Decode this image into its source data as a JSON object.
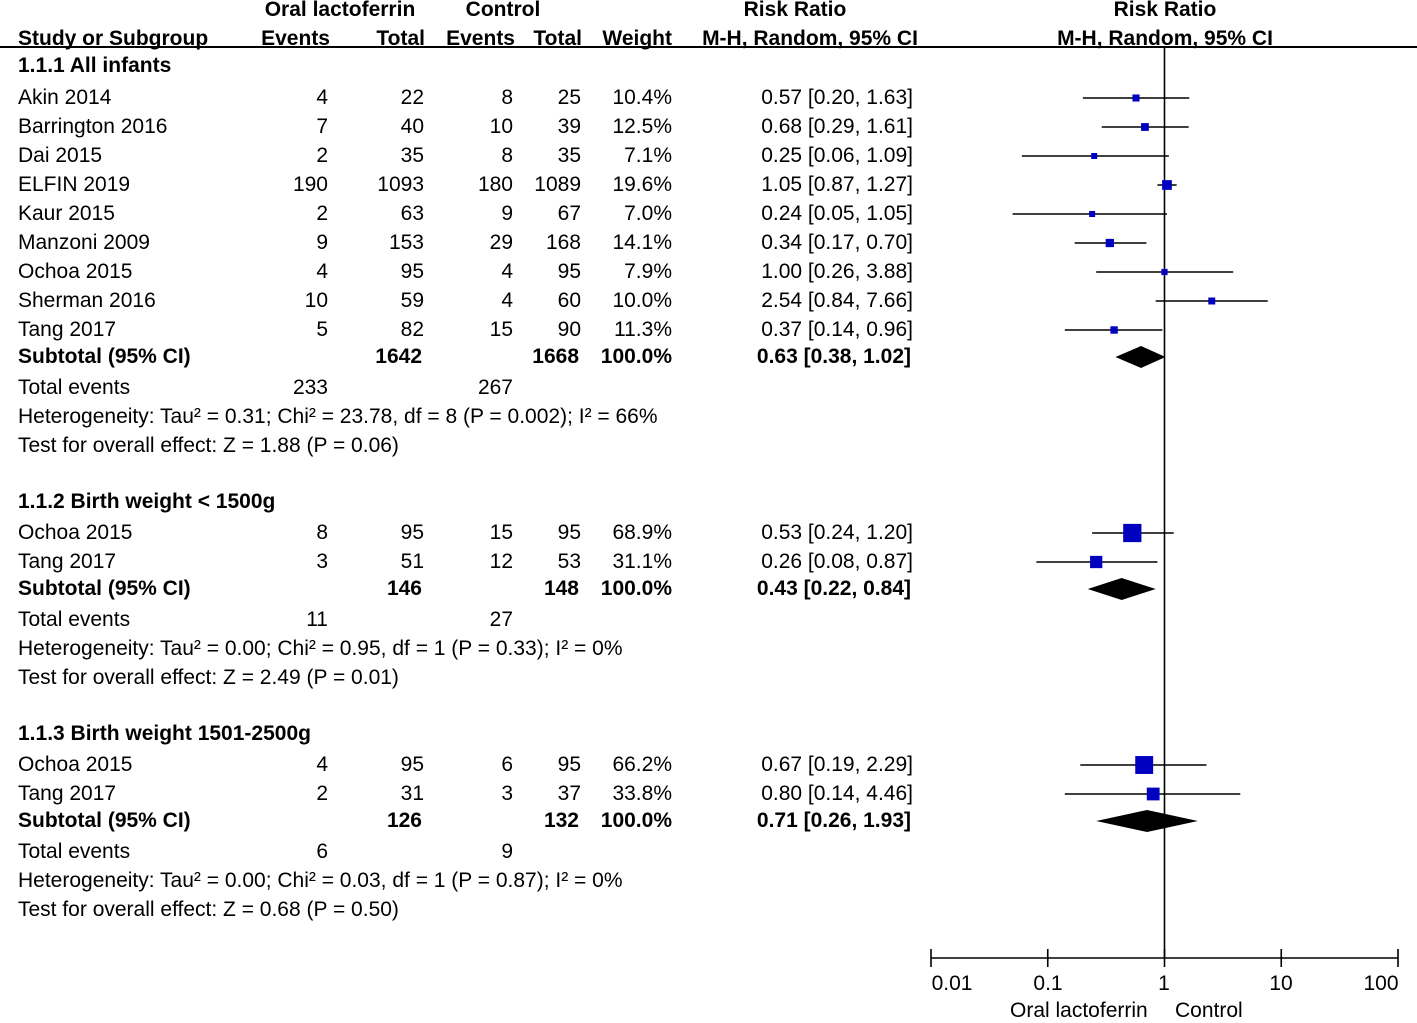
{
  "header": {
    "group1": "Oral lactoferrin",
    "group2": "Control",
    "rr_table": "Risk Ratio",
    "rr_plot": "Risk Ratio",
    "study_col": "Study or Subgroup",
    "events1": "Events",
    "total1": "Total",
    "events2": "Events",
    "total2": "Total",
    "weight": "Weight",
    "method_table": "M-H, Random, 95% CI",
    "method_plot": "M-H, Random, 95% CI"
  },
  "subgroups": [
    {
      "title": "1.1.1 All infants",
      "studies": [
        {
          "name": "Akin 2014",
          "e1": "4",
          "t1": "22",
          "e2": "8",
          "t2": "25",
          "weight": "10.4%",
          "ci": "0.57 [0.20, 1.63]"
        },
        {
          "name": "Barrington 2016",
          "e1": "7",
          "t1": "40",
          "e2": "10",
          "t2": "39",
          "weight": "12.5%",
          "ci": "0.68 [0.29, 1.61]"
        },
        {
          "name": "Dai 2015",
          "e1": "2",
          "t1": "35",
          "e2": "8",
          "t2": "35",
          "weight": "7.1%",
          "ci": "0.25 [0.06, 1.09]"
        },
        {
          "name": "ELFIN 2019",
          "e1": "190",
          "t1": "1093",
          "e2": "180",
          "t2": "1089",
          "weight": "19.6%",
          "ci": "1.05 [0.87, 1.27]"
        },
        {
          "name": "Kaur 2015",
          "e1": "2",
          "t1": "63",
          "e2": "9",
          "t2": "67",
          "weight": "7.0%",
          "ci": "0.24 [0.05, 1.05]"
        },
        {
          "name": "Manzoni 2009",
          "e1": "9",
          "t1": "153",
          "e2": "29",
          "t2": "168",
          "weight": "14.1%",
          "ci": "0.34 [0.17, 0.70]"
        },
        {
          "name": "Ochoa 2015",
          "e1": "4",
          "t1": "95",
          "e2": "4",
          "t2": "95",
          "weight": "7.9%",
          "ci": "1.00 [0.26, 3.88]"
        },
        {
          "name": "Sherman 2016",
          "e1": "10",
          "t1": "59",
          "e2": "4",
          "t2": "60",
          "weight": "10.0%",
          "ci": "2.54 [0.84, 7.66]"
        },
        {
          "name": "Tang 2017",
          "e1": "5",
          "t1": "82",
          "e2": "15",
          "t2": "90",
          "weight": "11.3%",
          "ci": "0.37 [0.14, 0.96]"
        }
      ],
      "subtotal": {
        "label": "Subtotal (95% CI)",
        "t1": "1642",
        "t2": "1668",
        "weight": "100.0%",
        "ci": "0.63 [0.38, 1.02]"
      },
      "events": {
        "label": "Total events",
        "e1": "233",
        "e2": "267"
      },
      "heterogeneity": "Heterogeneity: Tau² = 0.31; Chi² = 23.78, df = 8 (P = 0.002); I² = 66%",
      "overall": "Test for overall effect: Z = 1.88 (P = 0.06)"
    },
    {
      "title": "1.1.2 Birth weight < 1500g",
      "studies": [
        {
          "name": "Ochoa 2015",
          "e1": "8",
          "t1": "95",
          "e2": "15",
          "t2": "95",
          "weight": "68.9%",
          "ci": "0.53 [0.24, 1.20]"
        },
        {
          "name": "Tang 2017",
          "e1": "3",
          "t1": "51",
          "e2": "12",
          "t2": "53",
          "weight": "31.1%",
          "ci": "0.26 [0.08, 0.87]"
        }
      ],
      "subtotal": {
        "label": "Subtotal (95% CI)",
        "t1": "146",
        "t2": "148",
        "weight": "100.0%",
        "ci": "0.43 [0.22, 0.84]"
      },
      "events": {
        "label": "Total events",
        "e1": "11",
        "e2": "27"
      },
      "heterogeneity": "Heterogeneity: Tau² = 0.00; Chi² = 0.95, df = 1 (P = 0.33); I² = 0%",
      "overall": "Test for overall effect: Z = 2.49 (P = 0.01)"
    },
    {
      "title": "1.1.3 Birth weight 1501-2500g",
      "studies": [
        {
          "name": "Ochoa 2015",
          "e1": "4",
          "t1": "95",
          "e2": "6",
          "t2": "95",
          "weight": "66.2%",
          "ci": "0.67 [0.19, 2.29]"
        },
        {
          "name": "Tang 2017",
          "e1": "2",
          "t1": "31",
          "e2": "3",
          "t2": "37",
          "weight": "33.8%",
          "ci": "0.80 [0.14, 4.46]"
        }
      ],
      "subtotal": {
        "label": "Subtotal (95% CI)",
        "t1": "126",
        "t2": "132",
        "weight": "100.0%",
        "ci": "0.71 [0.26, 1.93]"
      },
      "events": {
        "label": "Total events",
        "e1": "6",
        "e2": "9"
      },
      "heterogeneity": "Heterogeneity: Tau² = 0.00; Chi² = 0.03, df = 1 (P = 0.87); I² = 0%",
      "overall": "Test for overall effect: Z = 0.68 (P = 0.50)"
    }
  ],
  "axis": {
    "ticks": [
      "0.01",
      "0.1",
      "1",
      "10",
      "100"
    ],
    "left_label": "Oral lactoferrin",
    "right_label": "Control"
  },
  "colors": {
    "marker": "#0000c0",
    "diamond": "#000000",
    "line": "#000000"
  },
  "chart_data": {
    "type": "forest",
    "title": "Risk Ratio",
    "xlabel": "M-H, Random, 95% CI",
    "scale": "log",
    "xlim": [
      0.01,
      100
    ],
    "null_value": 1,
    "favours": [
      "Oral lactoferrin",
      "Control"
    ],
    "subgroups": [
      {
        "name": "1.1.1 All infants",
        "studies": [
          {
            "name": "Akin 2014",
            "rr": 0.57,
            "lo": 0.2,
            "hi": 1.63,
            "weight": 10.4
          },
          {
            "name": "Barrington 2016",
            "rr": 0.68,
            "lo": 0.29,
            "hi": 1.61,
            "weight": 12.5
          },
          {
            "name": "Dai 2015",
            "rr": 0.25,
            "lo": 0.06,
            "hi": 1.09,
            "weight": 7.1
          },
          {
            "name": "ELFIN 2019",
            "rr": 1.05,
            "lo": 0.87,
            "hi": 1.27,
            "weight": 19.6
          },
          {
            "name": "Kaur 2015",
            "rr": 0.24,
            "lo": 0.05,
            "hi": 1.05,
            "weight": 7.0
          },
          {
            "name": "Manzoni 2009",
            "rr": 0.34,
            "lo": 0.17,
            "hi": 0.7,
            "weight": 14.1
          },
          {
            "name": "Ochoa 2015",
            "rr": 1.0,
            "lo": 0.26,
            "hi": 3.88,
            "weight": 7.9
          },
          {
            "name": "Sherman 2016",
            "rr": 2.54,
            "lo": 0.84,
            "hi": 7.66,
            "weight": 10.0
          },
          {
            "name": "Tang 2017",
            "rr": 0.37,
            "lo": 0.14,
            "hi": 0.96,
            "weight": 11.3
          }
        ],
        "pooled": {
          "rr": 0.63,
          "lo": 0.38,
          "hi": 1.02
        }
      },
      {
        "name": "1.1.2 Birth weight < 1500g",
        "studies": [
          {
            "name": "Ochoa 2015",
            "rr": 0.53,
            "lo": 0.24,
            "hi": 1.2,
            "weight": 68.9
          },
          {
            "name": "Tang 2017",
            "rr": 0.26,
            "lo": 0.08,
            "hi": 0.87,
            "weight": 31.1
          }
        ],
        "pooled": {
          "rr": 0.43,
          "lo": 0.22,
          "hi": 0.84
        }
      },
      {
        "name": "1.1.3 Birth weight 1501-2500g",
        "studies": [
          {
            "name": "Ochoa 2015",
            "rr": 0.67,
            "lo": 0.19,
            "hi": 2.29,
            "weight": 66.2
          },
          {
            "name": "Tang 2017",
            "rr": 0.8,
            "lo": 0.14,
            "hi": 4.46,
            "weight": 33.8
          }
        ],
        "pooled": {
          "rr": 0.71,
          "lo": 0.26,
          "hi": 1.93
        }
      }
    ]
  }
}
